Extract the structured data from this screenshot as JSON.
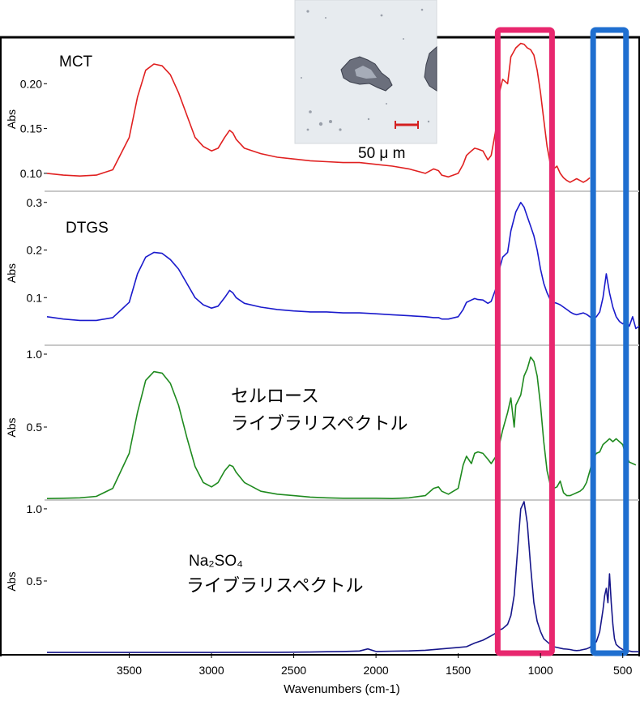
{
  "chart_data": {
    "type": "line",
    "xlabel": "Wavenumbers (cm-1)",
    "xlim": [
      4000,
      400
    ],
    "x_ticks": [
      "3500",
      "3000",
      "2500",
      "2000",
      "1500",
      "1000",
      "500"
    ],
    "x_tick_values": [
      3500,
      3000,
      2500,
      2000,
      1500,
      1000,
      500
    ],
    "highlights": [
      {
        "name": "sulfate-band",
        "color": "#e8276e",
        "x_range": [
          1260,
          930
        ]
      },
      {
        "name": "sulfate-bend",
        "color": "#1f6fd0",
        "x_range": [
          680,
          480
        ]
      }
    ],
    "panels": [
      {
        "name": "mct",
        "label": "MCT",
        "color": "#e02020",
        "ylabel": "Abs",
        "ylim": [
          0.08,
          0.25
        ],
        "y_ticks": [
          "0.10",
          "0.15",
          "0.20"
        ],
        "y_tick_values": [
          0.1,
          0.15,
          0.2
        ],
        "x": [
          4000,
          3900,
          3800,
          3700,
          3600,
          3500,
          3450,
          3400,
          3350,
          3300,
          3250,
          3200,
          3150,
          3100,
          3050,
          3000,
          2960,
          2920,
          2890,
          2870,
          2850,
          2800,
          2700,
          2600,
          2500,
          2400,
          2300,
          2200,
          2100,
          2000,
          1900,
          1800,
          1700,
          1650,
          1620,
          1600,
          1560,
          1500,
          1470,
          1450,
          1420,
          1400,
          1380,
          1350,
          1320,
          1300,
          1270,
          1250,
          1230,
          1200,
          1180,
          1150,
          1120,
          1100,
          1080,
          1060,
          1040,
          1020,
          1000,
          980,
          960,
          940,
          920,
          900,
          880,
          860,
          840,
          820,
          800,
          780,
          760,
          740,
          720,
          700
        ],
        "y": [
          0.1,
          0.098,
          0.097,
          0.098,
          0.104,
          0.14,
          0.185,
          0.215,
          0.222,
          0.22,
          0.21,
          0.19,
          0.165,
          0.14,
          0.13,
          0.125,
          0.128,
          0.14,
          0.148,
          0.145,
          0.138,
          0.128,
          0.122,
          0.118,
          0.116,
          0.114,
          0.113,
          0.112,
          0.112,
          0.11,
          0.108,
          0.105,
          0.1,
          0.105,
          0.103,
          0.098,
          0.096,
          0.1,
          0.11,
          0.12,
          0.125,
          0.128,
          0.127,
          0.125,
          0.115,
          0.12,
          0.15,
          0.19,
          0.205,
          0.2,
          0.23,
          0.24,
          0.245,
          0.244,
          0.24,
          0.238,
          0.232,
          0.215,
          0.19,
          0.16,
          0.13,
          0.11,
          0.105,
          0.108,
          0.1,
          0.095,
          0.092,
          0.09,
          0.092,
          0.094,
          0.092,
          0.09,
          0.092,
          0.095
        ]
      },
      {
        "name": "dtgs",
        "label": "DTGS",
        "color": "#1a1acc",
        "ylabel": "Abs",
        "ylim": [
          0.0,
          0.32
        ],
        "y_ticks": [
          "0.1",
          "0.2",
          "0.3"
        ],
        "y_tick_values": [
          0.1,
          0.2,
          0.3
        ],
        "x": [
          4000,
          3900,
          3800,
          3700,
          3600,
          3500,
          3450,
          3400,
          3350,
          3300,
          3250,
          3200,
          3150,
          3100,
          3050,
          3000,
          2960,
          2920,
          2890,
          2870,
          2850,
          2800,
          2700,
          2600,
          2500,
          2400,
          2300,
          2200,
          2100,
          2000,
          1900,
          1800,
          1700,
          1650,
          1620,
          1600,
          1560,
          1500,
          1470,
          1450,
          1420,
          1400,
          1380,
          1350,
          1320,
          1300,
          1270,
          1250,
          1230,
          1200,
          1180,
          1150,
          1120,
          1100,
          1080,
          1060,
          1040,
          1020,
          1000,
          980,
          960,
          940,
          920,
          900,
          880,
          860,
          840,
          820,
          800,
          780,
          760,
          740,
          720,
          700,
          680,
          660,
          640,
          620,
          600,
          580,
          560,
          540,
          520,
          500,
          480,
          460,
          440,
          420,
          400
        ],
        "y": [
          0.06,
          0.055,
          0.052,
          0.052,
          0.058,
          0.09,
          0.15,
          0.185,
          0.195,
          0.193,
          0.18,
          0.16,
          0.13,
          0.1,
          0.085,
          0.078,
          0.082,
          0.1,
          0.115,
          0.11,
          0.1,
          0.088,
          0.08,
          0.075,
          0.072,
          0.07,
          0.07,
          0.068,
          0.068,
          0.066,
          0.064,
          0.062,
          0.06,
          0.058,
          0.058,
          0.055,
          0.055,
          0.06,
          0.075,
          0.09,
          0.095,
          0.098,
          0.096,
          0.095,
          0.088,
          0.092,
          0.12,
          0.16,
          0.185,
          0.195,
          0.24,
          0.28,
          0.3,
          0.29,
          0.27,
          0.25,
          0.23,
          0.2,
          0.16,
          0.13,
          0.11,
          0.095,
          0.09,
          0.088,
          0.085,
          0.08,
          0.075,
          0.07,
          0.066,
          0.064,
          0.066,
          0.068,
          0.065,
          0.06,
          0.055,
          0.06,
          0.07,
          0.1,
          0.15,
          0.11,
          0.08,
          0.06,
          0.05,
          0.045,
          0.05,
          0.04,
          0.06,
          0.035,
          0.04
        ]
      },
      {
        "name": "cellulose",
        "label": "セルロース\nライブラリスペクトル",
        "label_lines": [
          "セルロース",
          "ライブラリスペクトル"
        ],
        "color": "#1f8a1f",
        "ylabel": "Abs",
        "ylim": [
          0.0,
          1.05
        ],
        "y_ticks": [
          "0.5",
          "1.0"
        ],
        "y_tick_values": [
          0.5,
          1.0
        ],
        "x": [
          4000,
          3900,
          3800,
          3700,
          3600,
          3500,
          3450,
          3400,
          3350,
          3300,
          3250,
          3200,
          3150,
          3100,
          3050,
          3000,
          2960,
          2920,
          2890,
          2870,
          2850,
          2800,
          2700,
          2600,
          2500,
          2400,
          2300,
          2200,
          2100,
          2000,
          1900,
          1800,
          1700,
          1650,
          1620,
          1600,
          1560,
          1500,
          1470,
          1450,
          1420,
          1400,
          1380,
          1350,
          1320,
          1300,
          1270,
          1250,
          1230,
          1200,
          1180,
          1160,
          1150,
          1120,
          1100,
          1080,
          1060,
          1040,
          1020,
          1000,
          980,
          960,
          940,
          920,
          900,
          880,
          860,
          840,
          820,
          800,
          780,
          760,
          740,
          720,
          700,
          680,
          660,
          640,
          620,
          600,
          580,
          560,
          540,
          520,
          500,
          480,
          460,
          440,
          420
        ],
        "y": [
          0.01,
          0.012,
          0.015,
          0.025,
          0.08,
          0.32,
          0.6,
          0.82,
          0.88,
          0.87,
          0.8,
          0.65,
          0.43,
          0.23,
          0.12,
          0.09,
          0.12,
          0.2,
          0.24,
          0.23,
          0.19,
          0.12,
          0.06,
          0.04,
          0.03,
          0.02,
          0.015,
          0.012,
          0.012,
          0.012,
          0.01,
          0.015,
          0.03,
          0.08,
          0.09,
          0.06,
          0.04,
          0.08,
          0.24,
          0.3,
          0.25,
          0.32,
          0.33,
          0.32,
          0.28,
          0.25,
          0.3,
          0.38,
          0.48,
          0.6,
          0.7,
          0.5,
          0.65,
          0.72,
          0.85,
          0.9,
          0.98,
          0.95,
          0.85,
          0.65,
          0.4,
          0.2,
          0.1,
          0.08,
          0.09,
          0.13,
          0.05,
          0.03,
          0.03,
          0.04,
          0.05,
          0.06,
          0.08,
          0.12,
          0.2,
          0.28,
          0.32,
          0.33,
          0.38,
          0.4,
          0.42,
          0.4,
          0.42,
          0.4,
          0.38,
          0.3,
          0.26,
          0.25,
          0.24
        ]
      },
      {
        "name": "sodium-sulfate",
        "label": "Na₂SO₄\nライブラリスペクトル",
        "label_lines": [
          "Na₂SO₄",
          "ライブラリスペクトル"
        ],
        "color": "#16168a",
        "ylabel": "Abs",
        "ylim": [
          0.0,
          1.05
        ],
        "y_ticks": [
          "0.5",
          "1.0"
        ],
        "y_tick_values": [
          0.5,
          1.0
        ],
        "x": [
          4000,
          3800,
          3600,
          3400,
          3200,
          3000,
          2800,
          2600,
          2400,
          2300,
          2200,
          2100,
          2050,
          2000,
          1900,
          1800,
          1700,
          1600,
          1500,
          1450,
          1400,
          1350,
          1300,
          1270,
          1250,
          1230,
          1200,
          1180,
          1160,
          1140,
          1120,
          1100,
          1080,
          1060,
          1040,
          1020,
          1000,
          980,
          960,
          940,
          920,
          900,
          880,
          860,
          840,
          820,
          800,
          780,
          760,
          740,
          720,
          700,
          680,
          660,
          640,
          620,
          610,
          600,
          590,
          580,
          570,
          560,
          550,
          540,
          520,
          500,
          480,
          460,
          440,
          420,
          400
        ],
        "y": [
          0.005,
          0.005,
          0.005,
          0.005,
          0.005,
          0.005,
          0.006,
          0.006,
          0.008,
          0.01,
          0.012,
          0.015,
          0.03,
          0.012,
          0.014,
          0.016,
          0.02,
          0.03,
          0.04,
          0.045,
          0.07,
          0.09,
          0.12,
          0.14,
          0.16,
          0.17,
          0.2,
          0.26,
          0.4,
          0.7,
          1.0,
          1.05,
          0.9,
          0.6,
          0.35,
          0.22,
          0.15,
          0.1,
          0.08,
          0.06,
          0.045,
          0.04,
          0.035,
          0.03,
          0.028,
          0.025,
          0.02,
          0.018,
          0.02,
          0.025,
          0.03,
          0.04,
          0.06,
          0.08,
          0.15,
          0.3,
          0.4,
          0.45,
          0.35,
          0.55,
          0.35,
          0.2,
          0.1,
          0.06,
          0.04,
          0.025,
          0.02,
          0.015,
          0.01,
          0.01,
          0.01
        ]
      }
    ],
    "inset": {
      "scale_bar_label": "50 μ m"
    }
  }
}
